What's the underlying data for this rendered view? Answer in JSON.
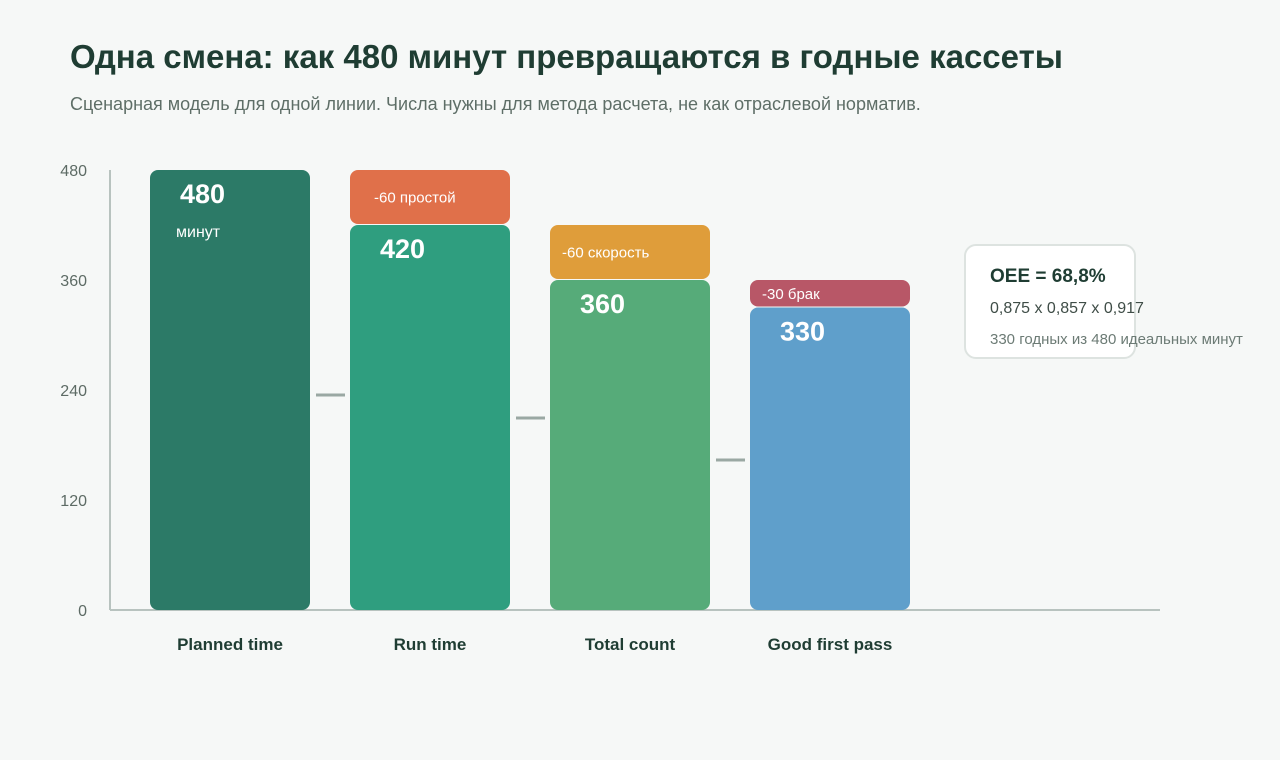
{
  "header": {
    "title": "Одна смена: как 480 минут превращаются в годные кассеты",
    "subtitle": "Сценарная модель для одной линии. Числа нужны для метода расчета, не как отраслевой норматив."
  },
  "chart_data": {
    "type": "bar",
    "title": "Одна смена: как 480 минут превращаются в годные кассеты",
    "subtitle": "Сценарная модель для одной линии. Числа нужны для метода расчета, не как отраслевой норматив.",
    "xlabel": "",
    "ylabel": "",
    "ylim": [
      0,
      480
    ],
    "yticks": [
      0,
      120,
      240,
      360,
      480
    ],
    "grid": false,
    "categories": [
      "Planned time",
      "Run time",
      "Total count",
      "Good first pass"
    ],
    "values": [
      480,
      420,
      360,
      330
    ],
    "value_labels": [
      "480",
      "420",
      "360",
      "330"
    ],
    "first_bar_unit": "минут",
    "losses": [
      {
        "after_category": "Planned time",
        "value": 60,
        "label": "-60 простой",
        "color": "#e0704a"
      },
      {
        "after_category": "Run time",
        "value": 60,
        "label": "-60 скорость",
        "color": "#df9d3a"
      },
      {
        "after_category": "Total count",
        "value": 30,
        "label": "-30 брак",
        "color": "#b85767"
      }
    ],
    "bar_colors": [
      "#2c7a67",
      "#2f9e7f",
      "#56ab79",
      "#5f9fcb"
    ],
    "connector_color": "#9aa8a3",
    "axis_color": "#b8c3bf"
  },
  "oee": {
    "title": "OEE = 68,8%",
    "formula": "0,875 x 0,857 x 0,917",
    "note": "330 годных из 480 идеальных минут"
  }
}
